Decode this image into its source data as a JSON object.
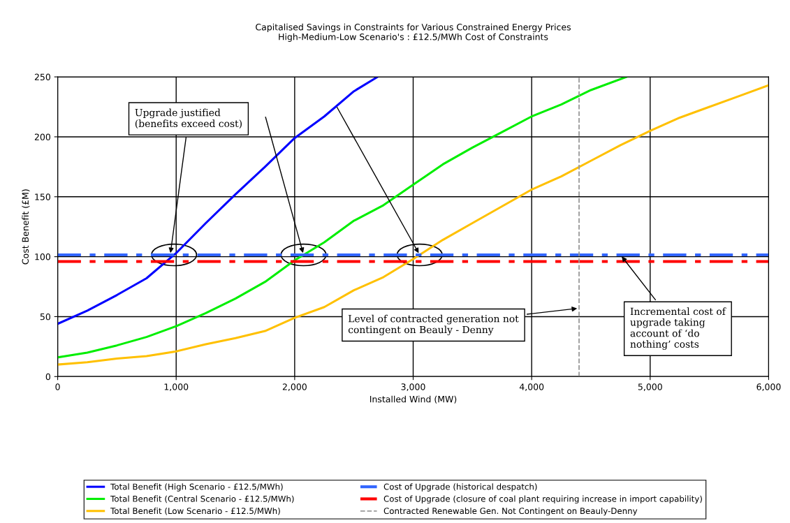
{
  "chart_data": {
    "type": "line",
    "title": "Capitalised Savings in Constraints for Various Constrained Energy Prices\nHigh-Medium-Low Scenario's : £12.5/MWh Cost of Constraints",
    "xlabel": "Installed Wind (MW)",
    "ylabel": "Cost Benefit (£M)",
    "series": [
      {
        "name": "Total Benefit (High Scenario - £12.5/MWh)",
        "color": "#0000ff",
        "x": [
          0,
          250,
          500,
          750,
          1000,
          1250,
          1500,
          1750,
          2000,
          2250,
          2500,
          2700
        ],
        "values": [
          44,
          55,
          68,
          82,
          103,
          128,
          152,
          175,
          199,
          217,
          238,
          250
        ]
      },
      {
        "name": "Total Benefit (Central Scenario - £12.5/MWh)",
        "color": "#00ee00",
        "x": [
          0,
          250,
          500,
          750,
          1000,
          1250,
          1500,
          1750,
          2000,
          2250,
          2500,
          2750,
          3000,
          3250,
          3500,
          3750,
          4000,
          4250,
          4500,
          4800
        ],
        "values": [
          16,
          20,
          26,
          33,
          42,
          53,
          65,
          79,
          97,
          112,
          130,
          143,
          160,
          177,
          191,
          204,
          217,
          227,
          239,
          250
        ]
      },
      {
        "name": "Total Benefit (Low Scenario - £12.5/MWh)",
        "color": "#ffc000",
        "x": [
          0,
          250,
          500,
          750,
          1000,
          1250,
          1500,
          1750,
          2000,
          2250,
          2500,
          2750,
          3000,
          3250,
          3500,
          3750,
          4000,
          4250,
          4500,
          4750,
          5000,
          5250,
          5500,
          5750,
          6000
        ],
        "values": [
          10,
          12,
          15,
          17,
          21,
          27,
          32,
          38,
          49,
          58,
          72,
          83,
          98,
          114,
          128,
          142,
          156,
          167,
          180,
          193,
          205,
          216,
          225,
          234,
          243
        ]
      }
    ],
    "ref_lines": [
      {
        "axis": "y",
        "value": 101.5,
        "label": "Cost of Upgrade (historical despatch)",
        "color": "#3366ff",
        "line_style": "dashdot"
      },
      {
        "axis": "y",
        "value": 96,
        "label": "Cost of Upgrade (closure of coal plant requiring increase in import capability)",
        "color": "#ff0000",
        "line_style": "dashdot"
      },
      {
        "axis": "x",
        "value": 4400,
        "label": "Contracted Renewable Gen. Not Contingent on Beauly-Denny",
        "color": "#999999",
        "line_style": "dashed"
      }
    ],
    "annotations": [
      {
        "text": "Upgrade justified\n(benefits exceed cost)",
        "x": 950,
        "y": 101.5
      },
      {
        "text": "Level of contracted generation not\ncontingent on Beauly - Denny",
        "x": 4400,
        "y": 57
      },
      {
        "text": "Incremental cost of\nupgrade taking\naccount of ‘do\nnothing’ costs",
        "x": 4750,
        "y": 101.5
      }
    ],
    "xlim": [
      0,
      6000
    ],
    "ylim": [
      0,
      250
    ],
    "xticks": [
      {
        "value": 0,
        "label": "0"
      },
      {
        "value": 1000,
        "label": "1,000"
      },
      {
        "value": 2000,
        "label": "2,000"
      },
      {
        "value": 3000,
        "label": "3,000"
      },
      {
        "value": 4000,
        "label": "4,000"
      },
      {
        "value": 5000,
        "label": "5,000"
      },
      {
        "value": 6000,
        "label": "6,000"
      }
    ],
    "yticks": [
      0,
      50,
      100,
      150,
      200,
      250
    ],
    "grid": true,
    "legend": "bottom",
    "marker": "none",
    "line_style": "solid"
  }
}
